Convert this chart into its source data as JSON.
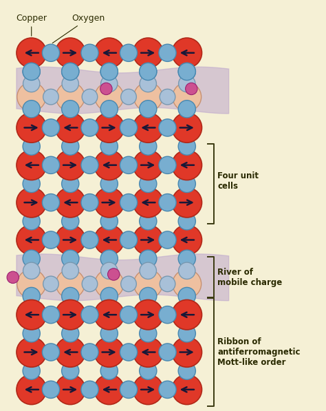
{
  "bg_color": "#f5f0d5",
  "copper_color": "#e03828",
  "copper_edge": "#b02818",
  "oxygen_color": "#78aed0",
  "oxygen_edge": "#4888b0",
  "mobile_cu_color": "#eec0a0",
  "mobile_cu_edge": "#c89070",
  "mobile_o_color": "#a8c0d8",
  "mobile_o_edge": "#7898b0",
  "mobile_hole_color": "#cc5090",
  "river_band_color": "#b8a0cc",
  "arrow_color": "#181838",
  "label_color": "#2a2a00",
  "bracket_color": "#3a3a10",
  "title_copper": "Copper",
  "title_oxygen": "Oxygen",
  "label_four_unit": "Four unit\ncells",
  "label_river": "River of\nmobile charge",
  "label_ribbon": "Ribbon of\nantiferromagnetic\nMott-like order",
  "figsize": [
    4.74,
    5.97
  ],
  "dpi": 100
}
